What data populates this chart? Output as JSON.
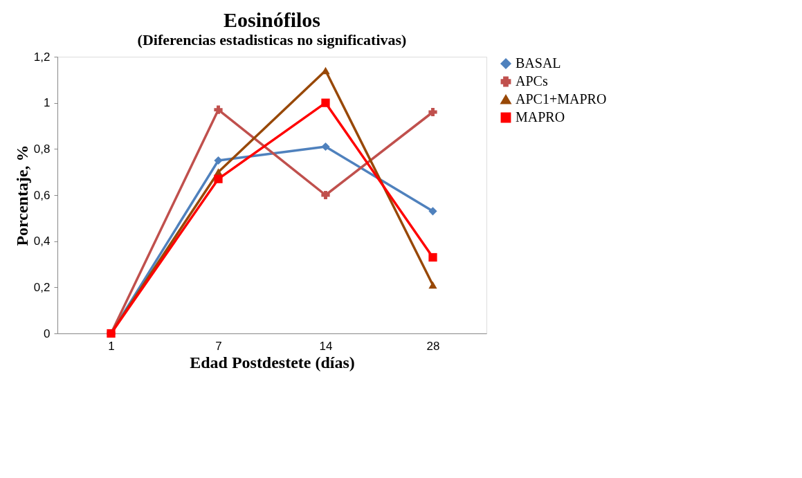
{
  "chart_data": {
    "type": "line",
    "title": "Eosinófilos",
    "subtitle": "(Diferencias estadisticas no significativas)",
    "xlabel": "Edad Postdestete (días)",
    "ylabel": "Porcentaje, %",
    "categories": [
      "1",
      "7",
      "14",
      "28"
    ],
    "series": [
      {
        "name": "BASAL",
        "color": "#4f81bd",
        "marker": "diamond",
        "values": [
          0,
          0.75,
          0.81,
          0.53
        ]
      },
      {
        "name": "APCs",
        "color": "#c0504d",
        "marker": "cross",
        "values": [
          0,
          0.97,
          0.6,
          0.96
        ]
      },
      {
        "name": "APC1+MAPRO",
        "color": "#984807",
        "marker": "triangle",
        "values": [
          0,
          0.7,
          1.14,
          0.21
        ]
      },
      {
        "name": "MAPRO",
        "color": "#ff0000",
        "marker": "square",
        "values": [
          0,
          0.67,
          1.0,
          0.33
        ]
      }
    ],
    "ylim": [
      0,
      1.2
    ],
    "yticks": [
      {
        "value": 0,
        "label": "0"
      },
      {
        "value": 0.2,
        "label": "0,2"
      },
      {
        "value": 0.4,
        "label": "0,4"
      },
      {
        "value": 0.6,
        "label": "0,6"
      },
      {
        "value": 0.8,
        "label": "0,8"
      },
      {
        "value": 1,
        "label": "1"
      },
      {
        "value": 1.2,
        "label": "1,2"
      }
    ],
    "grid": false,
    "legend": "right",
    "line_style": "solid"
  }
}
